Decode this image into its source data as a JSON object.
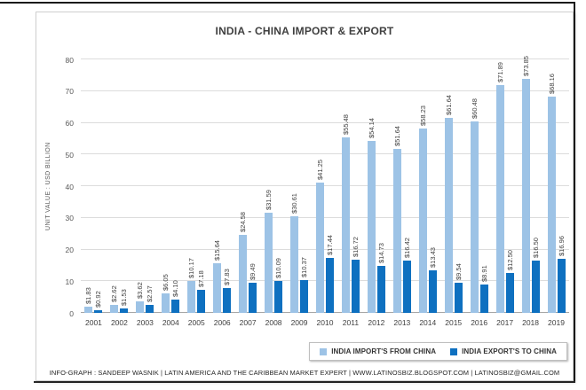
{
  "page": {
    "footer": "INFO-GRAPH : SANDEEP WASNIK | LATIN AMERICA AND THE CARIBBEAN MARKET EXPERT | WWW.LATINOSBIZ.BLOGSPOT.COM | LATINOSBIZ@GMAIL.COM"
  },
  "chart_data": {
    "type": "bar",
    "title": "INDIA - CHINA IMPORT & EXPORT",
    "xlabel": "",
    "ylabel": "UNIT VALUE : USD BILLION",
    "ylim": [
      0,
      80
    ],
    "yticks": [
      0,
      10,
      20,
      30,
      40,
      50,
      60,
      70,
      80
    ],
    "grid": true,
    "legend_position": "bottom-right",
    "categories": [
      "2001",
      "2002",
      "2003",
      "2004",
      "2005",
      "2006",
      "2007",
      "2008",
      "2009",
      "2010",
      "2011",
      "2012",
      "2013",
      "2014",
      "2015",
      "2016",
      "2017",
      "2018",
      "2019"
    ],
    "series": [
      {
        "name": "INDIA IMPORT'S FROM CHINA",
        "color": "#9DC3E6",
        "values": [
          1.83,
          2.62,
          3.62,
          6.05,
          10.17,
          15.64,
          24.58,
          31.59,
          30.61,
          41.25,
          55.48,
          54.14,
          51.64,
          58.23,
          61.64,
          60.48,
          71.89,
          73.85,
          68.16
        ],
        "labels": [
          "$1.83",
          "$2.62",
          "$3.62",
          "$6.05",
          "$10.17",
          "$15.64",
          "$24.58",
          "$31.59",
          "$30.61",
          "$41.25",
          "$55.48",
          "$54.14",
          "$51.64",
          "$58.23",
          "$61.64",
          "$60.48",
          "$71.89",
          "$73.85",
          "$68.16"
        ]
      },
      {
        "name": "INDIA EXPORT'S TO CHINA",
        "color": "#0E70C0",
        "values": [
          0.92,
          1.53,
          2.57,
          4.1,
          7.18,
          7.83,
          9.49,
          10.09,
          10.37,
          17.44,
          16.72,
          14.73,
          16.42,
          13.43,
          9.54,
          8.91,
          12.5,
          16.5,
          16.96
        ],
        "labels": [
          "$0.92",
          "$1.53",
          "$2.57",
          "$4.10",
          "$7.18",
          "$7.83",
          "$9.49",
          "$10.09",
          "$10.37",
          "$17.44",
          "$16.72",
          "$14.73",
          "$16.42",
          "$13.43",
          "$9.54",
          "$8.91",
          "$12.50",
          "$16.50",
          "$16.96"
        ]
      }
    ],
    "colors": {
      "gridline": "#DCDCDC",
      "axis_line": "#A6A6A6",
      "text": "#404040"
    }
  }
}
